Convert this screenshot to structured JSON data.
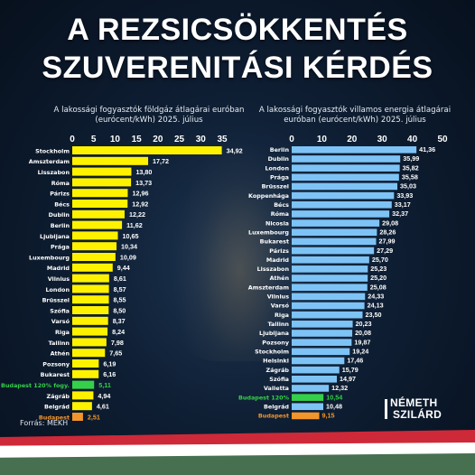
{
  "header": {
    "line1": "A REZSICSÖKKENTÉS",
    "line2": "SZUVERENITÁSI KÉRDÉS"
  },
  "source": "Forrás: MEKH",
  "brand": {
    "line1": "NÉMETH",
    "line2": "SZILÁRD"
  },
  "colors": {
    "gas_bar": "#fff200",
    "electricity_bar": "#7ec3f5",
    "highlight_120": "#35d04a",
    "highlight_budapest": "#f4952c"
  },
  "chart_data": [
    {
      "type": "bar",
      "orientation": "horizontal",
      "title": "A lakossági fogyasztók földgáz átlagárai euróban (eurócent/kWh) 2025. július",
      "xlim": [
        0,
        35
      ],
      "xticks": [
        "0",
        "5",
        "10",
        "15",
        "20",
        "25",
        "30",
        "35"
      ],
      "categories": [
        "Stockholm",
        "Amszterdam",
        "Lisszabon",
        "Róma",
        "Párizs",
        "Bécs",
        "Dublin",
        "Berlin",
        "Ljubljana",
        "Prága",
        "Luxembourg",
        "Madrid",
        "Vilnius",
        "London",
        "Brüsszel",
        "Szófia",
        "Varsó",
        "Riga",
        "Tallinn",
        "Athén",
        "Pozsony",
        "Bukarest",
        "Budapest 120% fogy.",
        "Zágráb",
        "Belgrád",
        "Budapest"
      ],
      "values": [
        34.92,
        17.72,
        13.8,
        13.73,
        12.96,
        12.92,
        12.22,
        11.62,
        10.65,
        10.34,
        10.09,
        9.44,
        8.61,
        8.57,
        8.55,
        8.5,
        8.37,
        8.24,
        7.98,
        7.65,
        6.19,
        6.16,
        5.11,
        4.94,
        4.61,
        2.51
      ],
      "value_labels": [
        "34,92",
        "17,72",
        "13,80",
        "13,73",
        "12,96",
        "12,92",
        "12,22",
        "11,62",
        "10,65",
        "10,34",
        "10,09",
        "9,44",
        "8,61",
        "8,57",
        "8,55",
        "8,50",
        "8,37",
        "8,24",
        "7,98",
        "7,65",
        "6,19",
        "6,16",
        "5,11",
        "4,94",
        "4,61",
        "2,51"
      ],
      "highlights": {
        "Budapest 120% fogy.": "green",
        "Budapest": "orange"
      }
    },
    {
      "type": "bar",
      "orientation": "horizontal",
      "title": "A lakossági fogyasztók villamos energia átlagárai euróban (eurócent/kWh) 2025. július",
      "xlim": [
        0,
        50
      ],
      "xticks": [
        "0",
        "10",
        "20",
        "30",
        "40",
        "50"
      ],
      "categories": [
        "Berlin",
        "Dublin",
        "London",
        "Prága",
        "Brüsszel",
        "Koppenhága",
        "Bécs",
        "Róma",
        "Nicosia",
        "Luxembourg",
        "Bukarest",
        "Párizs",
        "Madrid",
        "Lisszabon",
        "Athén",
        "Amszterdam",
        "Vilnius",
        "Varsó",
        "Riga",
        "Tallinn",
        "Ljubljana",
        "Pozsony",
        "Stockholm",
        "Helsinki",
        "Zágráb",
        "Szófia",
        "Valletta",
        "Budapest 120%",
        "Belgrád",
        "Budapest"
      ],
      "values": [
        41.36,
        35.99,
        35.82,
        35.58,
        35.03,
        33.93,
        33.17,
        32.37,
        29.08,
        28.26,
        27.99,
        27.29,
        25.7,
        25.23,
        25.2,
        25.08,
        24.33,
        24.13,
        23.5,
        20.23,
        20.08,
        19.87,
        19.24,
        17.46,
        15.79,
        14.97,
        12.32,
        10.54,
        10.48,
        9.15
      ],
      "value_labels": [
        "41,36",
        "35,99",
        "35,82",
        "35,58",
        "35,03",
        "33,93",
        "33,17",
        "32,37",
        "29,08",
        "28,26",
        "27,99",
        "27,29",
        "25,70",
        "25,23",
        "25,20",
        "25,08",
        "24,33",
        "24,13",
        "23,50",
        "20,23",
        "20,08",
        "19,87",
        "19,24",
        "17,46",
        "15,79",
        "14,97",
        "12,32",
        "10,54",
        "10,48",
        "9,15"
      ],
      "highlights": {
        "Budapest 120%": "green",
        "Budapest": "orange"
      }
    }
  ]
}
